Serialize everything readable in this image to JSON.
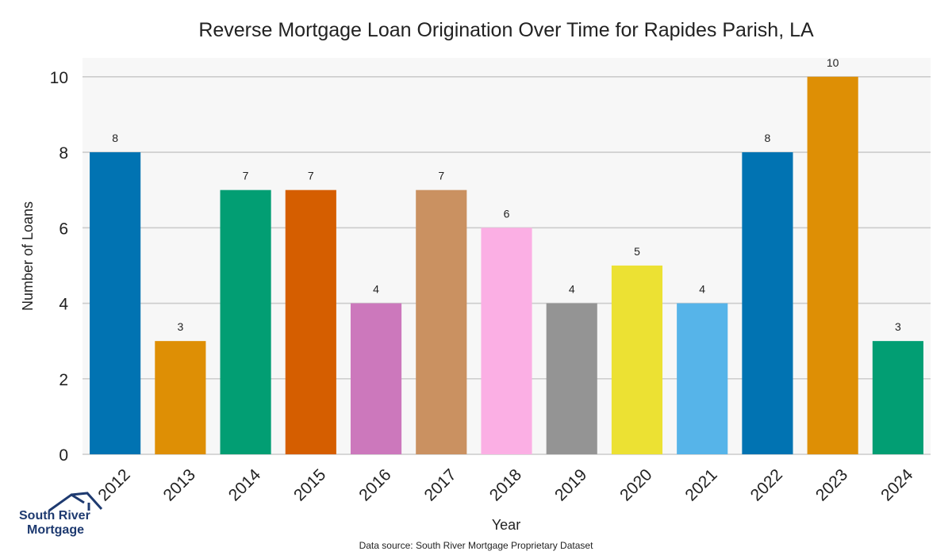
{
  "chart_data": {
    "type": "bar",
    "title": "Reverse Mortgage Loan Origination Over Time for Rapides Parish, LA",
    "xlabel": "Year",
    "ylabel": "Number of Loans",
    "categories": [
      "2012",
      "2013",
      "2014",
      "2015",
      "2016",
      "2017",
      "2018",
      "2019",
      "2020",
      "2021",
      "2022",
      "2023",
      "2024"
    ],
    "values": [
      8,
      3,
      7,
      7,
      4,
      7,
      6,
      4,
      5,
      4,
      8,
      10,
      3
    ],
    "ylim": [
      0,
      10.5
    ],
    "yticks": [
      0,
      2,
      4,
      6,
      8,
      10
    ],
    "grid": "horizontal",
    "colors": [
      "#0173b2",
      "#de8f05",
      "#029e73",
      "#d55e00",
      "#cc78bc",
      "#ca9161",
      "#fbafe4",
      "#949494",
      "#ece133",
      "#56b4e9",
      "#0173b2",
      "#de8f05",
      "#029e73"
    ],
    "plot_background": "#f7f7f7",
    "grid_color": "#cccccc"
  },
  "logo": {
    "line1": "South River",
    "line2": "Mortgage",
    "color": "#1e3a70"
  },
  "footer": {
    "source": "Data source: South River Mortgage Proprietary Dataset"
  }
}
